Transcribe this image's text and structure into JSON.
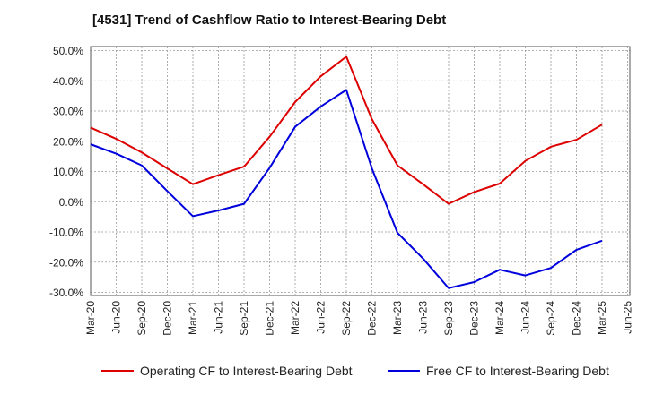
{
  "chart_data": {
    "type": "line",
    "title": "[4531]  Trend of Cashflow Ratio to Interest-Bearing Debt",
    "xlabel": "",
    "ylabel": "",
    "x": [
      "Mar-20",
      "Jun-20",
      "Sep-20",
      "Dec-20",
      "Mar-21",
      "Jun-21",
      "Sep-21",
      "Dec-21",
      "Mar-22",
      "Jun-22",
      "Sep-22",
      "Dec-22",
      "Mar-23",
      "Jun-23",
      "Sep-23",
      "Dec-23",
      "Mar-24",
      "Jun-24",
      "Sep-24",
      "Dec-24",
      "Mar-25",
      "Jun-25"
    ],
    "y_ticks": [
      "50.0%",
      "40.0%",
      "30.0%",
      "20.0%",
      "10.0%",
      "0.0%",
      "-10.0%",
      "-20.0%",
      "-30.0%"
    ],
    "ylim": [
      -30,
      50
    ],
    "grid": true,
    "legend_position": "bottom",
    "series": [
      {
        "name": "Operating CF to Interest-Bearing Debt",
        "color": "#dd0000",
        "values": [
          24.5,
          20.8,
          16.3,
          11.0,
          5.8,
          8.8,
          11.6,
          21.5,
          33.0,
          41.5,
          48.0,
          27.3,
          12.0,
          5.8,
          -0.7,
          3.2,
          6.0,
          13.5,
          18.2,
          20.5,
          25.5,
          null
        ]
      },
      {
        "name": "Free CF to Interest-Bearing Debt",
        "color": "#0000dd",
        "values": [
          19.0,
          15.9,
          12.0,
          3.5,
          -4.8,
          -2.9,
          -0.7,
          11.2,
          24.8,
          31.5,
          37.0,
          11.0,
          -10.3,
          -18.8,
          -28.6,
          -26.6,
          -22.5,
          -24.4,
          -21.9,
          -15.9,
          -12.9,
          null
        ]
      }
    ]
  }
}
